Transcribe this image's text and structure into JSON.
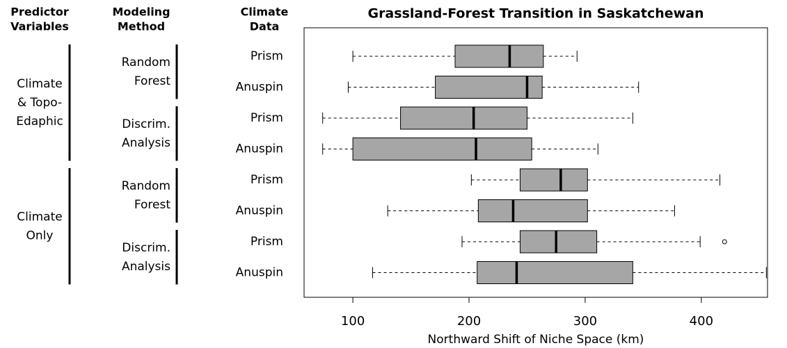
{
  "chart_data": {
    "type": "boxplot",
    "title": "Grassland-Forest Transition in Saskatchewan",
    "x_label": "Northward Shift of Niche Space (km)",
    "column_headers": [
      [
        "Predictor",
        "Variables"
      ],
      [
        "Modeling",
        "Method"
      ],
      [
        "Climate",
        "Data"
      ]
    ],
    "predictors": [
      [
        "Climate",
        "& Topo-",
        "Edaphic"
      ],
      [
        "Climate",
        "Only"
      ]
    ],
    "methods": [
      [
        "Random",
        "Forest"
      ],
      [
        "Discrim.",
        "Analysis"
      ],
      [
        "Random",
        "Forest"
      ],
      [
        "Discrim.",
        "Analysis"
      ]
    ],
    "categories": [
      "Prism",
      "Anuspin",
      "Prism",
      "Anuspin",
      "Prism",
      "Anuspin",
      "Prism",
      "Anuspin"
    ],
    "color": "#a6a6a6",
    "boxes": [
      {
        "whisker_low": 100,
        "q1": 188,
        "median": 235,
        "q3": 264,
        "whisker_high": 293,
        "outliers": []
      },
      {
        "whisker_low": 96,
        "q1": 171,
        "median": 250,
        "q3": 263,
        "whisker_high": 346,
        "outliers": []
      },
      {
        "whisker_low": 74,
        "q1": 141,
        "median": 204,
        "q3": 250,
        "whisker_high": 341,
        "outliers": []
      },
      {
        "whisker_low": 74,
        "q1": 100,
        "median": 206,
        "q3": 254,
        "whisker_high": 311,
        "outliers": []
      },
      {
        "whisker_low": 202,
        "q1": 244,
        "median": 279,
        "q3": 302,
        "whisker_high": 416,
        "outliers": []
      },
      {
        "whisker_low": 130,
        "q1": 208,
        "median": 238,
        "q3": 302,
        "whisker_high": 377,
        "outliers": []
      },
      {
        "whisker_low": 194,
        "q1": 244,
        "median": 275,
        "q3": 310,
        "whisker_high": 399,
        "outliers": [
          420
        ]
      },
      {
        "whisker_low": 117,
        "q1": 207,
        "median": 241,
        "q3": 341,
        "whisker_high": 456,
        "outliers": []
      }
    ],
    "xlim": [
      58,
      457
    ],
    "xticks": [
      100,
      200,
      300,
      400
    ]
  }
}
